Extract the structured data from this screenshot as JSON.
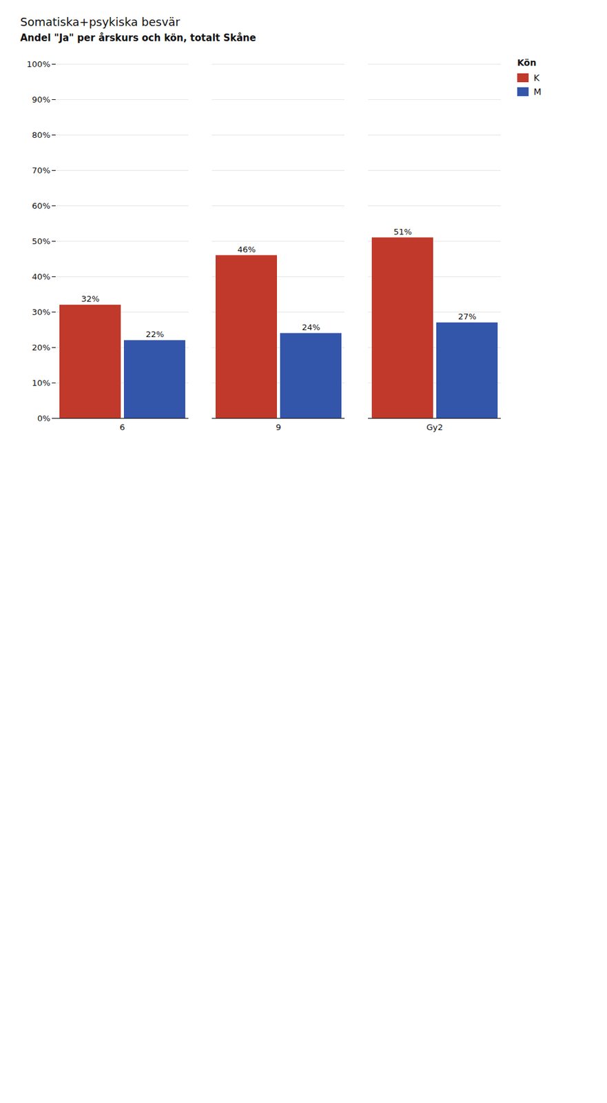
{
  "chart_data": {
    "type": "bar",
    "title": "Somatiska+psykiska besvär",
    "subtitle": "Andel \"Ja\" per årskurs och kön, totalt  Skåne",
    "categories": [
      "6",
      "9",
      "Gy2"
    ],
    "series": [
      {
        "name": "K",
        "color": "#c0392b",
        "values": [
          32,
          46,
          51
        ],
        "value_labels": [
          "32%",
          "46%",
          "51%"
        ]
      },
      {
        "name": "M",
        "color": "#3355aa",
        "values": [
          22,
          24,
          27
        ],
        "value_labels": [
          "22%",
          "24%",
          "27%"
        ]
      }
    ],
    "ylim": [
      0,
      100
    ],
    "yticks": [
      {
        "value": 0,
        "label": "0%"
      },
      {
        "value": 10,
        "label": "10%"
      },
      {
        "value": 20,
        "label": "20%"
      },
      {
        "value": 30,
        "label": "30%"
      },
      {
        "value": 40,
        "label": "40%"
      },
      {
        "value": 50,
        "label": "50%"
      },
      {
        "value": 60,
        "label": "60%"
      },
      {
        "value": 70,
        "label": "70%"
      },
      {
        "value": 80,
        "label": "80%"
      },
      {
        "value": 90,
        "label": "90%"
      },
      {
        "value": 100,
        "label": "100%"
      }
    ],
    "grid": true,
    "data_labels": true,
    "legend": "right",
    "legend_title": "Kön"
  }
}
